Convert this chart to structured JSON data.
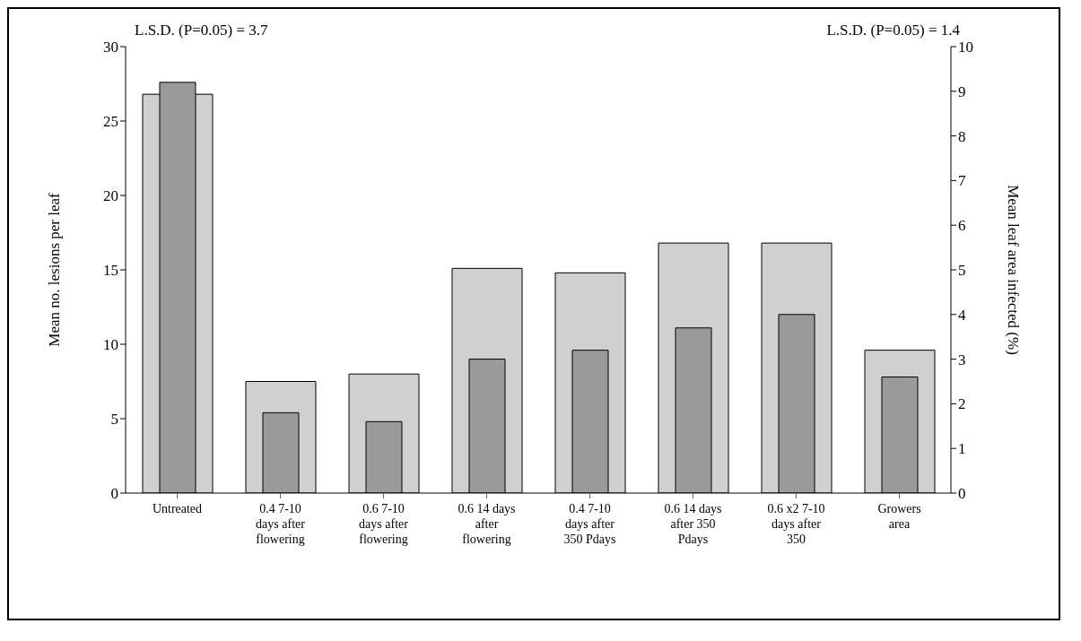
{
  "chart_data": {
    "type": "bar",
    "ylabel": "Mean no. lesions per leaf",
    "y2label": "Mean leaf area infected (%)",
    "annotations": [
      "L.S.D. (P=0.05) = 3.7",
      "L.S.D. (P=0.05) = 1.4"
    ],
    "categories": [
      "Untreated",
      "0.4 7-10 days after flowering",
      "0.6 7-10 days after flowering",
      "0.6 14 days after flowering",
      "0.4 7-10 days after 350 Pdays",
      "0.6 14 days after 350 Pdays",
      "0.6 x2 7-10 days after 350",
      "Growers area"
    ],
    "series": [
      {
        "color": "#d0d0d0",
        "values": [
          26.8,
          7.5,
          8.0,
          15.1,
          14.8,
          16.8,
          16.8,
          9.6
        ]
      },
      {
        "color": "#9a9a9a",
        "axis": "y2",
        "values": [
          9.2,
          1.8,
          1.6,
          3.0,
          3.2,
          3.7,
          4.0,
          2.6
        ]
      }
    ],
    "ylim": [
      0,
      30
    ],
    "yticks": [
      0,
      5,
      10,
      15,
      20,
      25,
      30
    ],
    "y2lim": [
      0,
      10
    ],
    "y2ticks": [
      0,
      1,
      2,
      3,
      4,
      5,
      6,
      7,
      8,
      9,
      10
    ]
  }
}
